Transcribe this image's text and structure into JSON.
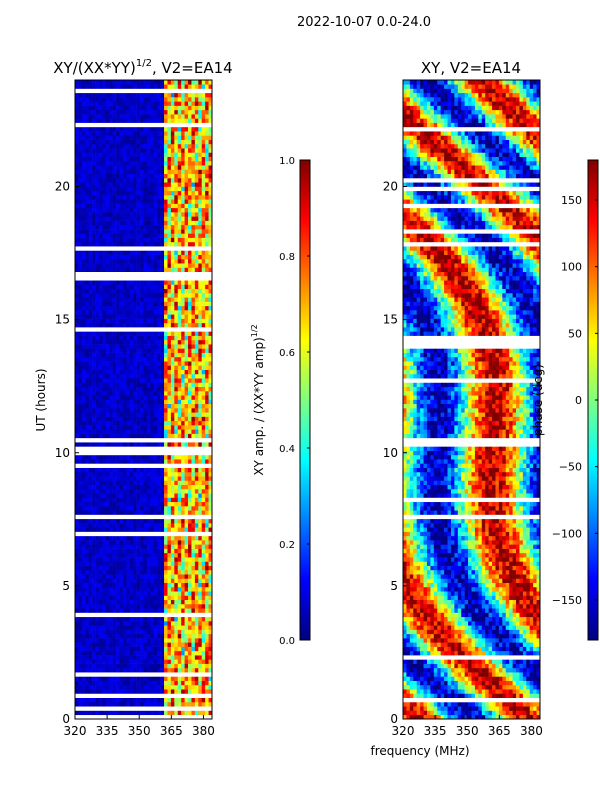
{
  "suptitle": "2022-10-07 0.0-24.0",
  "shared_xlabel": "frequency (MHz)",
  "colors": {
    "spine": "#000000",
    "background": "#ffffff",
    "blank_row": "#ffffff"
  },
  "colormap": "jet",
  "chart_data": [
    {
      "type": "heatmap",
      "title_main": "XY/(XX*YY)",
      "title_sup": "1/2",
      "title_tail": ", V2=EA14",
      "ylabel": "UT (hours)",
      "xlim": [
        320,
        384
      ],
      "ylim": [
        0,
        24
      ],
      "xticks": [
        "320",
        "335",
        "350",
        "365",
        "380"
      ],
      "xtick_values": [
        320,
        335,
        350,
        365,
        380
      ],
      "yticks": [
        "0",
        "5",
        "10",
        "15",
        "20"
      ],
      "ytick_values": [
        0,
        5,
        10,
        15,
        20
      ],
      "low_amp_band_MHz": [
        320,
        362
      ],
      "high_amp_band_MHz": [
        362,
        384
      ],
      "colorbar": {
        "label": "XY amp. / (XX*YY amp)",
        "label_sup": "1/2",
        "range": [
          0,
          1
        ],
        "ticks": [
          "0.0",
          "0.2",
          "0.4",
          "0.6",
          "0.8",
          "1.0"
        ],
        "tick_values": [
          0,
          0.2,
          0.4,
          0.6,
          0.8,
          1.0
        ]
      }
    },
    {
      "type": "heatmap",
      "title": "XY, V2=EA14",
      "xlim": [
        320,
        384
      ],
      "ylim": [
        0,
        24
      ],
      "xticks": [
        "320",
        "335",
        "350",
        "365",
        "380"
      ],
      "xtick_values": [
        320,
        335,
        350,
        365,
        380
      ],
      "yticks": [
        "0",
        "5",
        "10",
        "15",
        "20"
      ],
      "ytick_values": [
        0,
        5,
        10,
        15,
        20
      ],
      "colorbar": {
        "label": "phase (deg)",
        "range": [
          -180,
          180
        ],
        "ticks": [
          "−150",
          "−100",
          "−50",
          "0",
          "50",
          "100",
          "150"
        ],
        "tick_values": [
          -150,
          -100,
          -50,
          0,
          50,
          100,
          150
        ]
      }
    }
  ]
}
